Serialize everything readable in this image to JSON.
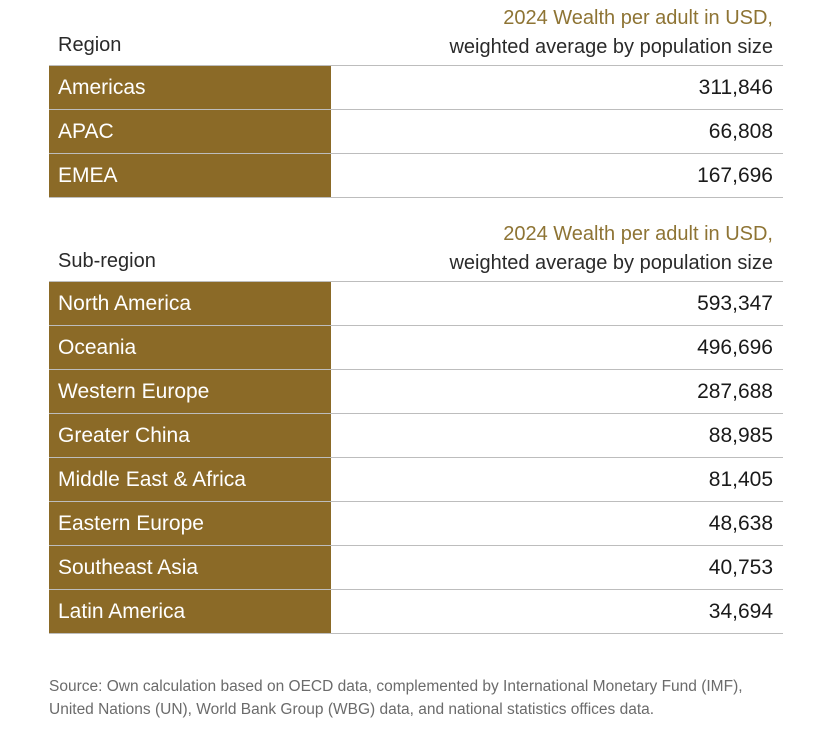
{
  "region_table": {
    "column_label": "Region",
    "value_header_line1": "2024 Wealth per adult in USD,",
    "value_header_line2": "weighted average by population size",
    "rows": [
      {
        "label": "Americas",
        "value": "311,846"
      },
      {
        "label": "APAC",
        "value": "66,808"
      },
      {
        "label": "EMEA",
        "value": "167,696"
      }
    ]
  },
  "subregion_table": {
    "column_label": "Sub-region",
    "value_header_line1": "2024 Wealth per adult in USD,",
    "value_header_line2": "weighted average by population size",
    "rows": [
      {
        "label": "North America",
        "value": "593,347"
      },
      {
        "label": "Oceania",
        "value": "496,696"
      },
      {
        "label": "Western Europe",
        "value": "287,688"
      },
      {
        "label": "Greater China",
        "value": "88,985"
      },
      {
        "label": "Middle East & Africa",
        "value": "81,405"
      },
      {
        "label": "Eastern Europe",
        "value": "48,638"
      },
      {
        "label": "Southeast Asia",
        "value": "40,753"
      },
      {
        "label": "Latin America",
        "value": "34,694"
      }
    ]
  },
  "source_note": "Source: Own calculation based on OECD data, complemented by International Monetary Fund (IMF), United Nations (UN), World Bank Group (WBG) data, and national statistics offices data.",
  "colors": {
    "label_background": "#8b6a27",
    "header_accent": "#8e7434",
    "divider": "#bdbdbd"
  }
}
